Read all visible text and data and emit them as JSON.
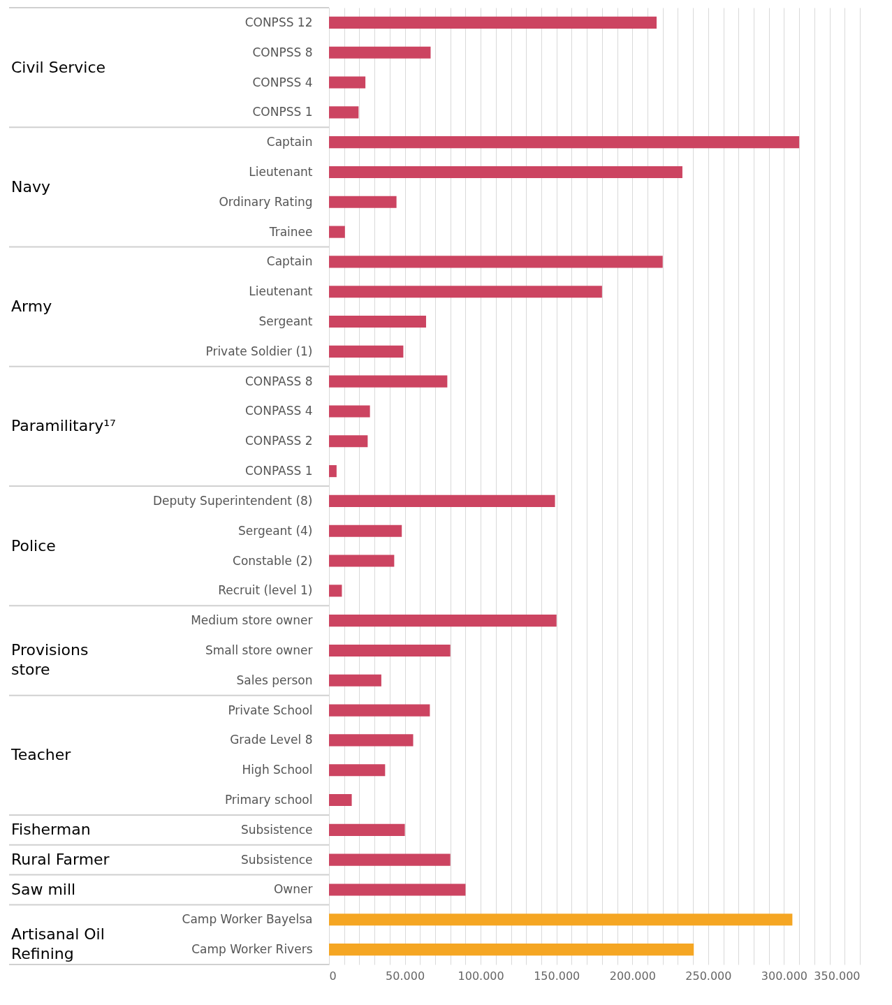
{
  "chart_data": {
    "type": "bar",
    "orientation": "horizontal",
    "categories": [
      "CONPSS 12",
      "CONPSS 8",
      "CONPSS 4",
      "CONPSS 1",
      "Captain",
      "Lieutenant",
      "Ordinary Rating",
      "Trainee",
      "Captain",
      "Lieutenant",
      "Sergeant",
      "Private Soldier (1)",
      "CONPASS 8",
      "CONPASS 4",
      "CONPASS 2",
      "CONPASS 1",
      "Deputy Superintendent (8)",
      "Sergeant (4)",
      "Constable (2)",
      "Recruit (level 1)",
      "Medium store owner",
      "Small store owner",
      "Sales person",
      "Private School",
      "Grade Level 8",
      "High School",
      "Primary school",
      "Subsistence",
      "Subsistence",
      "Owner",
      "Camp Worker Bayelsa",
      "Camp Worker Rivers"
    ],
    "values": [
      216000,
      67000,
      24000,
      19500,
      310000,
      233000,
      44500,
      10500,
      220000,
      180000,
      64000,
      49000,
      78000,
      27000,
      25500,
      5000,
      149000,
      48000,
      43000,
      8500,
      150000,
      80000,
      34500,
      66500,
      55500,
      37000,
      15000,
      50000,
      80000,
      90000,
      305500,
      240500
    ],
    "colors": [
      "#cc4461",
      "#cc4461",
      "#cc4461",
      "#cc4461",
      "#cc4461",
      "#cc4461",
      "#cc4461",
      "#cc4461",
      "#cc4461",
      "#cc4461",
      "#cc4461",
      "#cc4461",
      "#cc4461",
      "#cc4461",
      "#cc4461",
      "#cc4461",
      "#cc4461",
      "#cc4461",
      "#cc4461",
      "#cc4461",
      "#cc4461",
      "#cc4461",
      "#cc4461",
      "#cc4461",
      "#cc4461",
      "#cc4461",
      "#cc4461",
      "#cc4461",
      "#cc4461",
      "#cc4461",
      "#f5a623",
      "#f5a623"
    ],
    "xlim": [
      0,
      350000
    ],
    "xticks": [
      0,
      {
        "value": 10000,
        "label": null
      },
      {
        "value": 20000,
        "label": null
      },
      {
        "value": 30000,
        "label": null
      },
      {
        "value": 40000,
        "label": null
      },
      {
        "value": 50000,
        "label": "50.000"
      },
      {
        "value": 60000,
        "label": null
      },
      {
        "value": 70000,
        "label": null
      },
      {
        "value": 80000,
        "label": null
      },
      {
        "value": 90000,
        "label": null
      },
      {
        "value": 100000,
        "label": "100.000"
      },
      {
        "value": 110000,
        "label": null
      },
      {
        "value": 120000,
        "label": null
      },
      {
        "value": 130000,
        "label": null
      },
      {
        "value": 140000,
        "label": null
      },
      {
        "value": 150000,
        "label": "150.000"
      },
      {
        "value": 160000,
        "label": null
      },
      {
        "value": 170000,
        "label": null
      },
      {
        "value": 180000,
        "label": null
      },
      {
        "value": 190000,
        "label": null
      },
      {
        "value": 200000,
        "label": "200.000"
      },
      {
        "value": 210000,
        "label": null
      },
      {
        "value": 220000,
        "label": null
      },
      {
        "value": 230000,
        "label": null
      },
      {
        "value": 240000,
        "label": null
      },
      {
        "value": 250000,
        "label": "250.000"
      },
      {
        "value": 260000,
        "label": null
      },
      {
        "value": 270000,
        "label": null
      },
      {
        "value": 280000,
        "label": null
      },
      {
        "value": 290000,
        "label": null
      },
      {
        "value": 300000,
        "label": "300.000"
      },
      {
        "value": 310000,
        "label": null
      },
      {
        "value": 320000,
        "label": null
      },
      {
        "value": 330000,
        "label": null
      },
      {
        "value": 340000,
        "label": null
      },
      {
        "value": 350000,
        "label": "350.000"
      }
    ],
    "grid": "x",
    "annotations": [
      "Civil Service",
      "Navy",
      "Army",
      "Paramilitary¹⁷",
      "Police",
      "Provisions store",
      "Teacher",
      "Fisherman",
      "Rural Farmer",
      "Saw mill",
      "Artisanal Oil Refining"
    ]
  }
}
